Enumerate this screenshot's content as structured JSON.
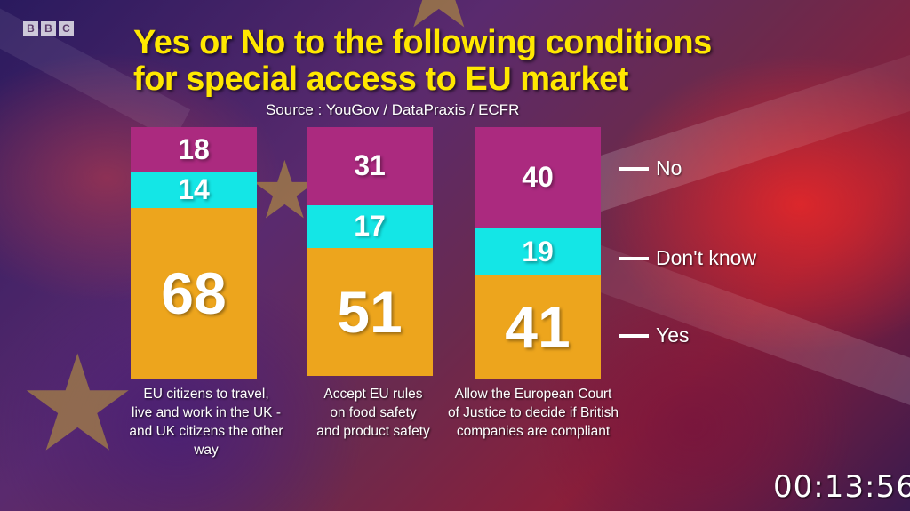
{
  "branding": {
    "logo_letters": [
      "B",
      "B",
      "C"
    ]
  },
  "title_lines": [
    "Yes or No to the following conditions",
    "for special access to EU market"
  ],
  "source": "Source : YouGov / DataPraxis / ECFR",
  "colors": {
    "no": "#ab2a7f",
    "dont_know": "#14e6e6",
    "yes": "#eda51d",
    "title": "#ffe800"
  },
  "chart_data": {
    "type": "bar",
    "stacked": true,
    "title": "Yes or No to the following conditions for special access to EU market",
    "categories": [
      [
        "EU citizens to travel,",
        "live and work in the UK -",
        "and UK citizens the other way"
      ],
      [
        "Accept EU rules",
        "on food safety",
        "and product safety"
      ],
      [
        "Allow the European Court",
        "of Justice to decide if British",
        "companies are compliant"
      ]
    ],
    "series": [
      {
        "name": "No",
        "values": [
          18,
          31,
          40
        ]
      },
      {
        "name": "Don't know",
        "values": [
          14,
          17,
          19
        ]
      },
      {
        "name": "Yes",
        "values": [
          68,
          51,
          41
        ]
      }
    ],
    "legend": [
      "No",
      "Don't know",
      "Yes"
    ],
    "legend_position": "right",
    "ylim": [
      0,
      100
    ],
    "grid": false
  },
  "timestamp": "00:13:56"
}
